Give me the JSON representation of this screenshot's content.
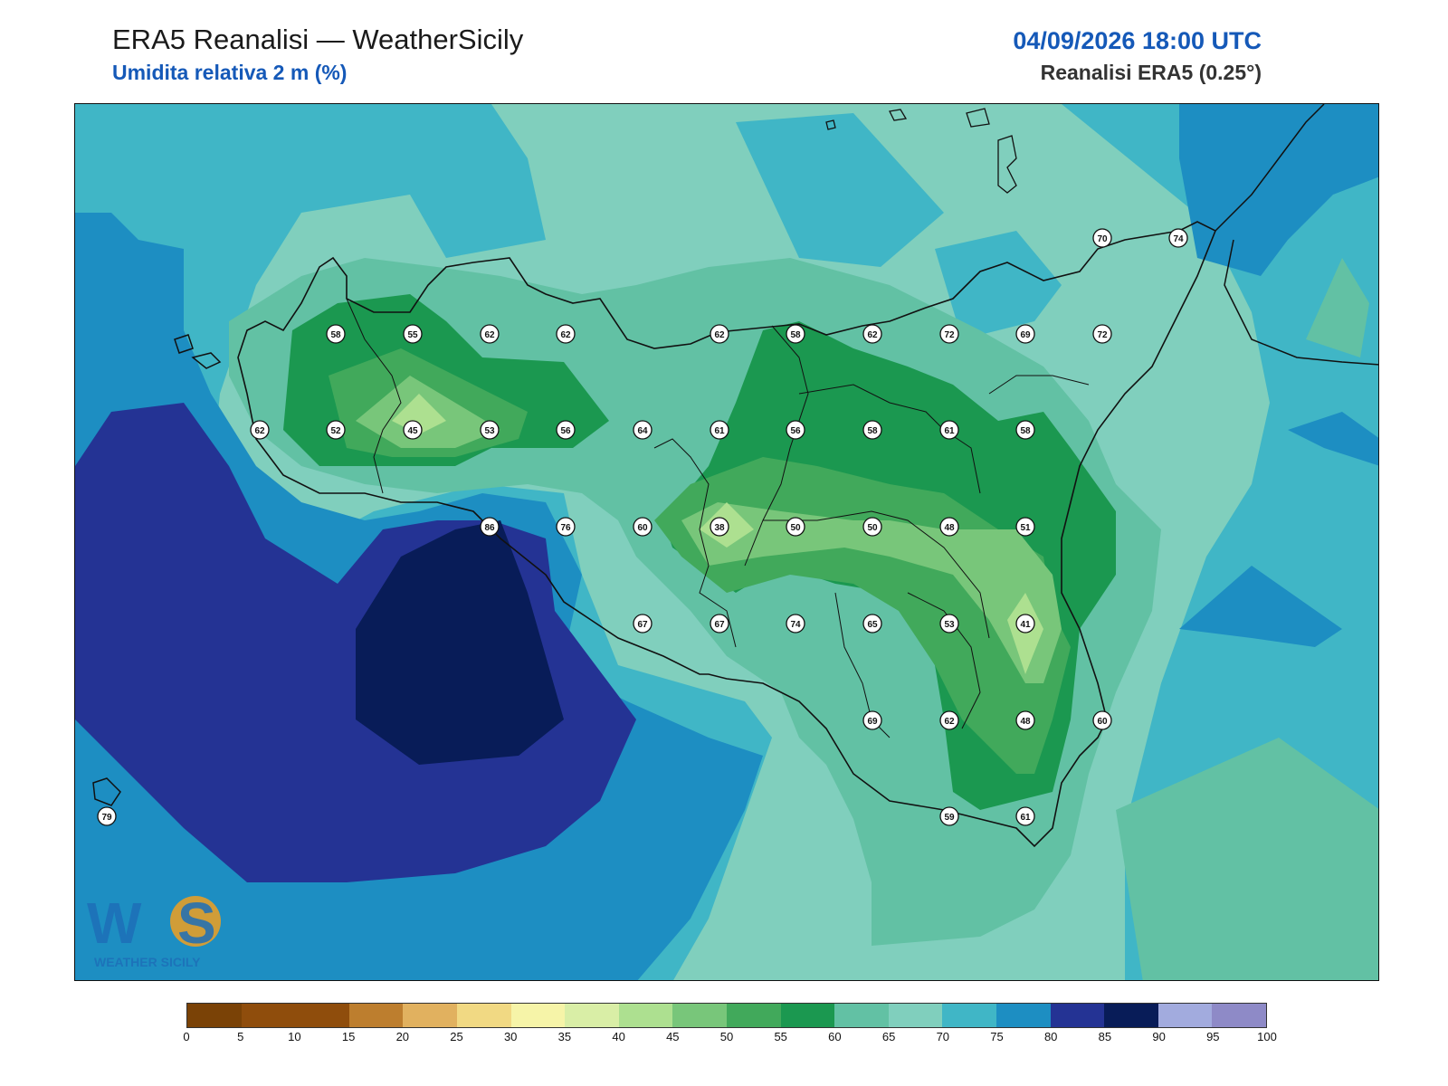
{
  "header": {
    "title": "ERA5 Reanalisi — WeatherSicily",
    "subtitle": "Umidita relativa 2 m (%)",
    "datetime": "04/09/2026 18:00 UTC",
    "source": "Reanalisi ERA5 (0.25°)"
  },
  "colorbar": {
    "ticks": [
      "0",
      "5",
      "10",
      "15",
      "20",
      "25",
      "30",
      "35",
      "40",
      "45",
      "50",
      "55",
      "60",
      "65",
      "70",
      "75",
      "80",
      "85",
      "90",
      "95",
      "100"
    ],
    "colors": [
      "#7a4206",
      "#8f4d0c",
      "#8f4d0c",
      "#bd7e2e",
      "#e1b15f",
      "#f1d983",
      "#f6f4a8",
      "#d9eea6",
      "#ade090",
      "#78c67a",
      "#41a95b",
      "#1b9850",
      "#62c1a4",
      "#80cfbd",
      "#40b6c6",
      "#1d8ec2",
      "#243394",
      "#081c58",
      "#a2abde",
      "#8e8ac7"
    ]
  },
  "logo": {
    "text": "WEATHER SICILY",
    "mark": "WS"
  },
  "map": {
    "stations": [
      {
        "value": "58"
      },
      {
        "value": "55"
      },
      {
        "value": "62"
      },
      {
        "value": "62"
      },
      {
        "value": "62"
      },
      {
        "value": "58"
      },
      {
        "value": "62"
      },
      {
        "value": "72"
      },
      {
        "value": "69"
      },
      {
        "value": "72"
      },
      {
        "value": "70"
      },
      {
        "value": "74"
      },
      {
        "value": "62"
      },
      {
        "value": "52"
      },
      {
        "value": "45"
      },
      {
        "value": "53"
      },
      {
        "value": "56"
      },
      {
        "value": "64"
      },
      {
        "value": "61"
      },
      {
        "value": "56"
      },
      {
        "value": "58"
      },
      {
        "value": "61"
      },
      {
        "value": "58"
      },
      {
        "value": "86"
      },
      {
        "value": "76"
      },
      {
        "value": "60"
      },
      {
        "value": "38"
      },
      {
        "value": "50"
      },
      {
        "value": "50"
      },
      {
        "value": "48"
      },
      {
        "value": "51"
      },
      {
        "value": "67"
      },
      {
        "value": "67"
      },
      {
        "value": "74"
      },
      {
        "value": "65"
      },
      {
        "value": "53"
      },
      {
        "value": "41"
      },
      {
        "value": "69"
      },
      {
        "value": "62"
      },
      {
        "value": "48"
      },
      {
        "value": "60"
      },
      {
        "value": "79"
      },
      {
        "value": "59"
      },
      {
        "value": "61"
      }
    ]
  }
}
